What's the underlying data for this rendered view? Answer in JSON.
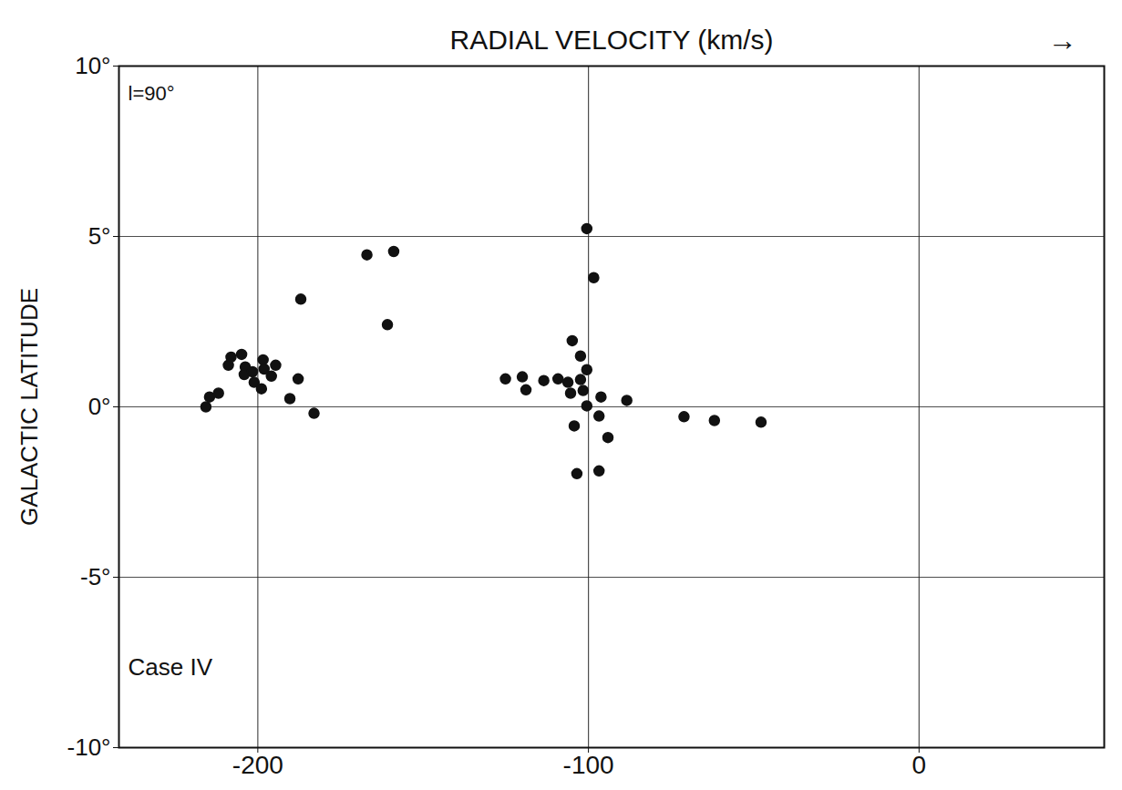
{
  "chart_data": {
    "type": "scatter",
    "x_label": "RADIAL VELOCITY (km/s)",
    "y_label": "GALACTIC LATITUDE",
    "annotations": [
      "l=90°",
      "Case IV",
      "→"
    ],
    "xlim": [
      -242,
      56
    ],
    "ylim": [
      -10,
      10
    ],
    "xticks": [
      -200,
      -100,
      0
    ],
    "yticks": [
      {
        "value": -10,
        "label": "-10°"
      },
      {
        "value": -5,
        "label": "-5°"
      },
      {
        "value": 0,
        "label": "0°"
      },
      {
        "value": 5,
        "label": "5°"
      },
      {
        "value": 10,
        "label": "10°"
      }
    ],
    "grid": true,
    "color": "#111111",
    "marker": "circle",
    "x": [
      -215.7,
      -214.6,
      -211.9,
      -208.9,
      -208.1,
      -204.9,
      -203.8,
      -204.1,
      -201.6,
      -201.1,
      -198.9,
      -198.4,
      -198.1,
      -195.9,
      -194.6,
      -190.3,
      -187.8,
      -187.0,
      -183.0,
      -167.0,
      -158.9,
      -160.8,
      -125.1,
      -120.0,
      -118.9,
      -113.5,
      -109.2,
      -106.2,
      -105.4,
      -104.9,
      -104.3,
      -103.5,
      -102.4,
      -102.4,
      -101.6,
      -100.5,
      -100.5,
      -100.5,
      -98.4,
      -96.8,
      -96.2,
      -96.8,
      -94.1,
      -88.4,
      -71.1,
      -61.9,
      -47.8
    ],
    "values": [
      0.0,
      0.29,
      0.4,
      1.22,
      1.46,
      1.54,
      1.17,
      0.95,
      1.03,
      0.72,
      0.53,
      1.38,
      1.11,
      0.9,
      1.22,
      0.24,
      0.82,
      3.16,
      -0.19,
      4.46,
      4.56,
      2.41,
      0.82,
      0.88,
      0.5,
      0.77,
      0.82,
      0.72,
      0.4,
      1.94,
      -0.56,
      -1.96,
      0.8,
      1.49,
      0.48,
      5.23,
      1.09,
      0.03,
      3.79,
      -0.27,
      0.29,
      -1.88,
      -0.9,
      0.19,
      -0.29,
      -0.4,
      -0.45
    ]
  }
}
